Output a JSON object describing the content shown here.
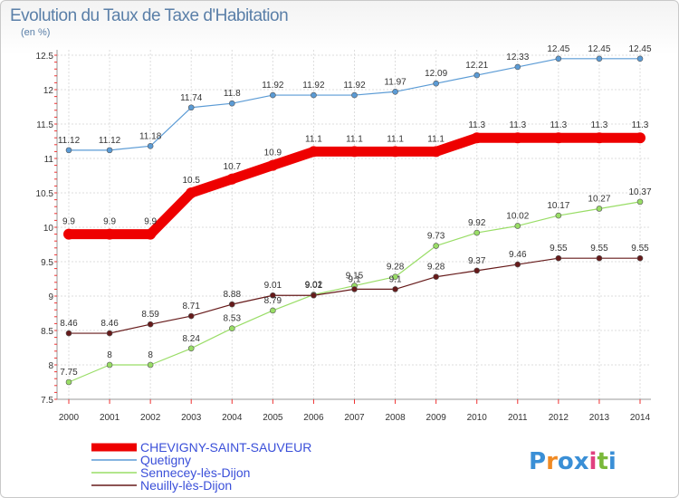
{
  "chart_title": "Evolution du Taux de Taxe d'Habitation",
  "chart_unit": "(en %)",
  "logo": "Proxiti",
  "chart_data": {
    "type": "line",
    "x": [
      "2000",
      "2001",
      "2002",
      "2003",
      "2004",
      "2005",
      "2006",
      "2007",
      "2008",
      "2009",
      "2010",
      "2011",
      "2012",
      "2013",
      "2014"
    ],
    "ylim": [
      7.5,
      12.5
    ],
    "yticks": [
      "7.5",
      "8",
      "8.5",
      "9",
      "9.5",
      "10",
      "10.5",
      "11",
      "11.5",
      "12",
      "12.5"
    ],
    "grid": true,
    "legend_position": "bottom",
    "series": [
      {
        "name": "CHEVIGNY-SAINT-SAUVEUR",
        "color": "#ee0000",
        "values": [
          9.9,
          9.9,
          9.9,
          10.5,
          10.7,
          10.9,
          11.1,
          11.1,
          11.1,
          11.1,
          11.3,
          11.3,
          11.3,
          11.3,
          11.3
        ],
        "labels": [
          "9.9",
          "9.9",
          "9.9",
          "10.5",
          "10.7",
          "10.9",
          "11.1",
          "11.1",
          "11.1",
          "11.1",
          "11.3",
          "11.3",
          "11.3",
          "11.3",
          "11.3"
        ]
      },
      {
        "name": "Quetigny",
        "color": "#5b9bd5",
        "values": [
          11.12,
          11.12,
          11.18,
          11.74,
          11.8,
          11.92,
          11.92,
          11.92,
          11.97,
          12.09,
          12.21,
          12.33,
          12.45,
          12.45,
          12.45
        ],
        "labels": [
          "11.12",
          "11.12",
          "11.18",
          "11.74",
          "11.8",
          "11.92",
          "11.92",
          "11.92",
          "11.97",
          "12.09",
          "12.21",
          "12.33",
          "12.45",
          "12.45",
          "12.45"
        ]
      },
      {
        "name": "Sennecey-lès-Dijon",
        "color": "#99dd66",
        "values": [
          7.75,
          8,
          8,
          8.24,
          8.53,
          8.79,
          9.02,
          9.15,
          9.28,
          9.73,
          9.92,
          10.02,
          10.17,
          10.27,
          10.37
        ],
        "labels": [
          "7.75",
          "8",
          "8",
          "8.24",
          "8.53",
          "8.79",
          "9.02",
          "9.15",
          "9.28",
          "9.73",
          "9.92",
          "10.02",
          "10.17",
          "10.27",
          "10.37"
        ]
      },
      {
        "name": "Neuilly-lès-Dijon",
        "color": "#661a1a",
        "values": [
          8.46,
          8.46,
          8.59,
          8.71,
          8.88,
          9.01,
          9.01,
          9.1,
          9.1,
          9.28,
          9.37,
          9.46,
          9.55,
          9.55,
          9.55
        ],
        "labels": [
          "8.46",
          "8.46",
          "8.59",
          "8.71",
          "8.88",
          "9.01",
          "9.01",
          "9.1",
          "9.1",
          "9.28",
          "9.37",
          "9.46",
          "9.55",
          "9.55",
          "9.55"
        ]
      }
    ]
  }
}
